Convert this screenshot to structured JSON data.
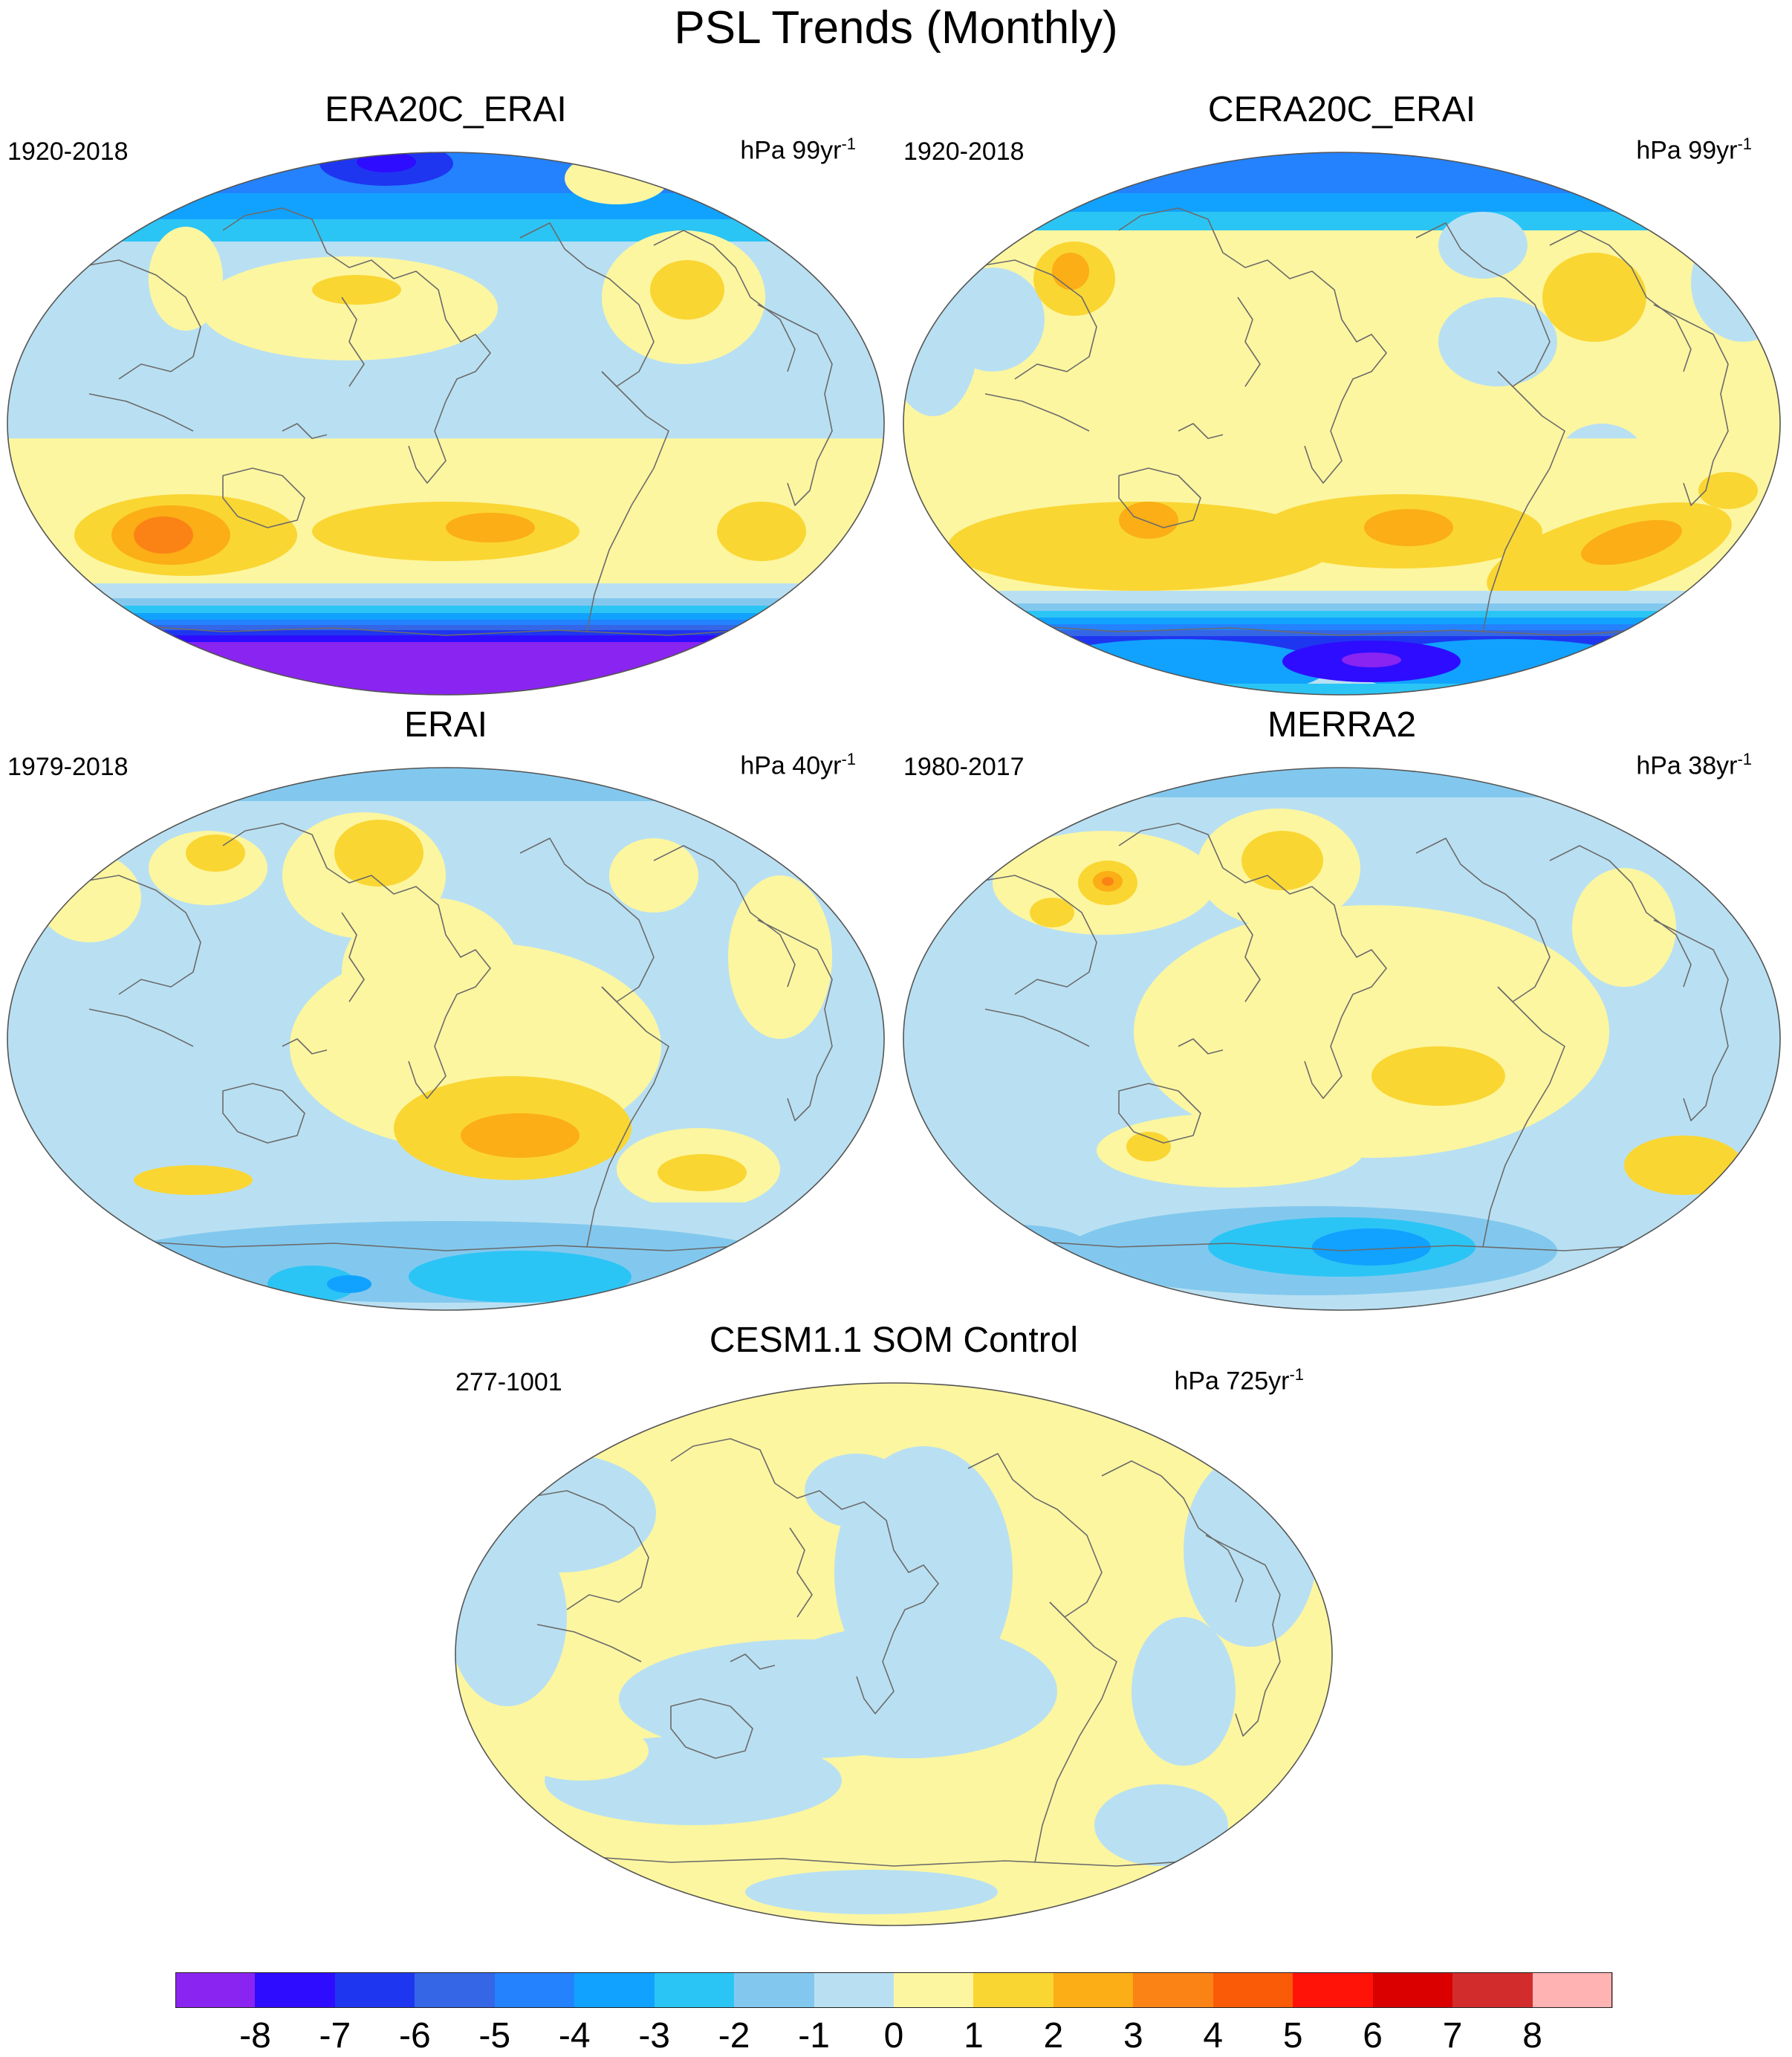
{
  "title": "PSL Trends (Monthly)",
  "panels": [
    {
      "name": "ERA20C_ERAI",
      "years": "1920-2018",
      "units": "hPa 99yr",
      "units_exp": "-1",
      "style": "era20c"
    },
    {
      "name": "CERA20C_ERAI",
      "years": "1920-2018",
      "units": "hPa 99yr",
      "units_exp": "-1",
      "style": "cera20c"
    },
    {
      "name": "ERAI",
      "years": "1979-2018",
      "units": "hPa 40yr",
      "units_exp": "-1",
      "style": "erai"
    },
    {
      "name": "MERRA2",
      "years": "1980-2017",
      "units": "hPa 38yr",
      "units_exp": "-1",
      "style": "merra2"
    },
    {
      "name": "CESM1.1 SOM Control",
      "years": "277-1001",
      "units": "hPa 725yr",
      "units_exp": "-1",
      "style": "cesm"
    }
  ],
  "colorbar": {
    "labels": [
      "-8",
      "-7",
      "-6",
      "-5",
      "-4",
      "-3",
      "-2",
      "-1",
      "0",
      "1",
      "2",
      "3",
      "4",
      "5",
      "6",
      "7",
      "8"
    ],
    "colors": [
      "#8a24f0",
      "#2e0cff",
      "#1f36f0",
      "#3466e6",
      "#2482ff",
      "#11a2ff",
      "#2bc5f5",
      "#82c8ee",
      "#b9e0f2",
      "#fdf6a0",
      "#fad633",
      "#fbae15",
      "#fb8316",
      "#fa5b06",
      "#ff1308",
      "#da0000",
      "#d32c2c",
      "#ffb3b3"
    ]
  }
}
